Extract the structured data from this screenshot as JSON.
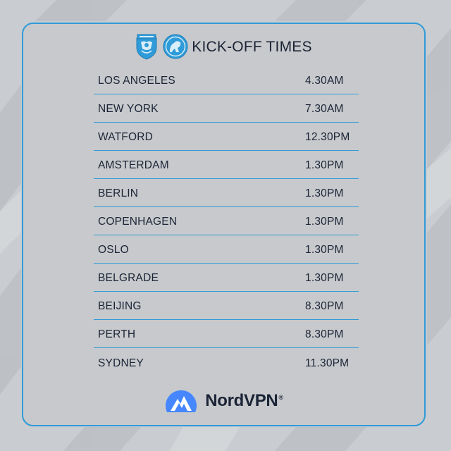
{
  "header": {
    "title": "KICK-OFF TIMES",
    "crest_left": "watford-crest",
    "crest_right": "millwall-crest"
  },
  "rows": [
    {
      "city": "LOS ANGELES",
      "time": "4.30AM"
    },
    {
      "city": "NEW YORK",
      "time": "7.30AM"
    },
    {
      "city": "WATFORD",
      "time": "12.30PM"
    },
    {
      "city": "AMSTERDAM",
      "time": "1.30PM"
    },
    {
      "city": "BERLIN",
      "time": "1.30PM"
    },
    {
      "city": "COPENHAGEN",
      "time": "1.30PM"
    },
    {
      "city": "OSLO",
      "time": "1.30PM"
    },
    {
      "city": "BELGRADE",
      "time": "1.30PM"
    },
    {
      "city": "BEIJING",
      "time": "8.30PM"
    },
    {
      "city": "PERTH",
      "time": "8.30PM"
    },
    {
      "city": "SYDNEY",
      "time": "11.30PM"
    }
  ],
  "sponsor": {
    "name": "NordVPN",
    "mark": "®"
  },
  "colors": {
    "accent": "#2f9bd8",
    "text": "#1b2436",
    "card_bg": "#c7c9cc",
    "nord_blue": "#4687ff"
  }
}
